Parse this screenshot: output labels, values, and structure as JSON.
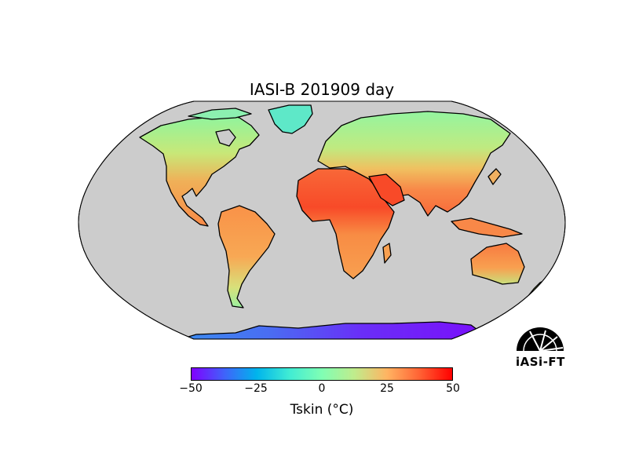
{
  "title": "IASI-B 201909 day",
  "colorbar": {
    "label": "Tskin (°C)",
    "ticks": [
      "−50",
      "−25",
      "0",
      "25",
      "50"
    ],
    "min": -50,
    "max": 50,
    "colormap": "rainbow"
  },
  "logo": {
    "text": "iASi-FT"
  },
  "colors": {
    "ocean": "#cccccc",
    "coast": "#000000"
  }
}
